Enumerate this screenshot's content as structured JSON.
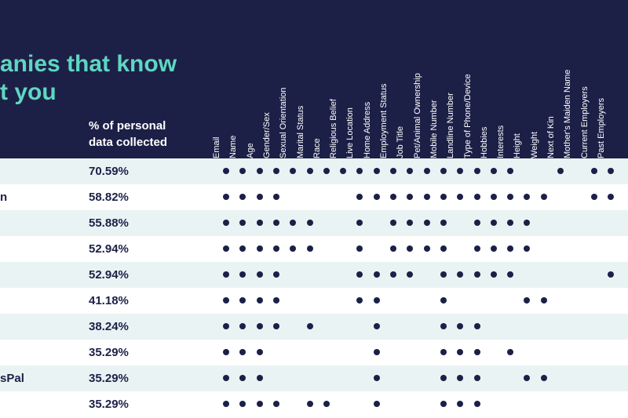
{
  "header": {
    "title_line1": "anies that know",
    "title_line2": "t you",
    "pct_header_line1": "% of personal",
    "pct_header_line2": "data collected"
  },
  "colors": {
    "header_bg": "#1c2047",
    "title": "#5fd6c2",
    "row_shade": "#e9f3f3",
    "dot": "#1c2047"
  },
  "chart_data": {
    "type": "table",
    "columns": [
      "Email",
      "Name",
      "Age",
      "Gender/Sex",
      "Sexual Orientation",
      "Marital Status",
      "Race",
      "Religious Belief",
      "Live Location",
      "Home Address",
      "Employment Status",
      "Job Title",
      "Pet/Animal Ownership",
      "Mobile Number",
      "Landline Number",
      "Type of Phone/Device",
      "Hobbies",
      "Interests",
      "Height",
      "Weight",
      "Next of Kin",
      "Mother's Maiden Name",
      "Current Employers",
      "Past Employers"
    ],
    "rows": [
      {
        "name": "",
        "pct": "70.59%",
        "dots": [
          0,
          1,
          2,
          3,
          4,
          5,
          6,
          7,
          8,
          9,
          10,
          11,
          12,
          13,
          14,
          15,
          16,
          17,
          20,
          22,
          23
        ]
      },
      {
        "name": "n",
        "pct": "58.82%",
        "dots": [
          0,
          1,
          2,
          3,
          8,
          9,
          10,
          11,
          12,
          13,
          14,
          15,
          16,
          17,
          18,
          19,
          22,
          23
        ]
      },
      {
        "name": "",
        "pct": "55.88%",
        "dots": [
          0,
          1,
          2,
          3,
          4,
          5,
          8,
          10,
          11,
          12,
          13,
          15,
          16,
          17,
          18
        ]
      },
      {
        "name": "",
        "pct": "52.94%",
        "dots": [
          0,
          1,
          2,
          3,
          4,
          5,
          8,
          10,
          11,
          12,
          13,
          15,
          16,
          17,
          18
        ]
      },
      {
        "name": "",
        "pct": "52.94%",
        "dots": [
          0,
          1,
          2,
          3,
          8,
          9,
          10,
          11,
          13,
          14,
          15,
          16,
          17,
          23
        ]
      },
      {
        "name": "",
        "pct": "41.18%",
        "dots": [
          0,
          1,
          2,
          3,
          8,
          9,
          13,
          18,
          19
        ]
      },
      {
        "name": "",
        "pct": "38.24%",
        "dots": [
          0,
          1,
          2,
          3,
          5,
          9,
          13,
          14,
          15
        ]
      },
      {
        "name": "",
        "pct": "35.29%",
        "dots": [
          0,
          1,
          2,
          9,
          13,
          14,
          15,
          17
        ]
      },
      {
        "name": "sPal",
        "pct": "35.29%",
        "dots": [
          0,
          1,
          2,
          9,
          13,
          14,
          15,
          18,
          19
        ]
      },
      {
        "name": "",
        "pct": "35.29%",
        "dots": [
          0,
          1,
          2,
          3,
          5,
          6,
          9,
          13,
          14,
          15
        ]
      }
    ]
  }
}
